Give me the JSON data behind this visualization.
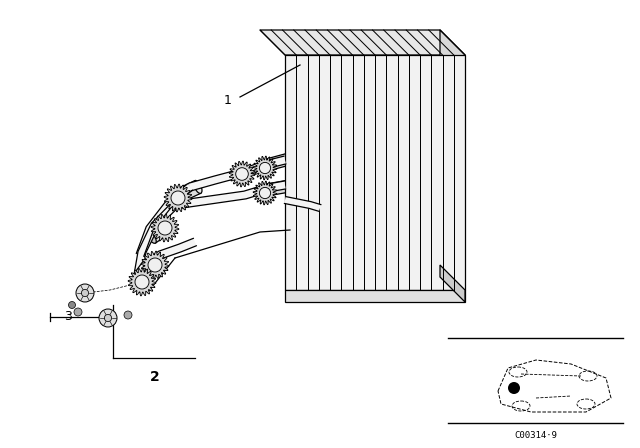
{
  "bg_color": "#ffffff",
  "line_color": "#000000",
  "label_1": "1",
  "label_2": "2",
  "label_3": "3",
  "code_text": "C00314·9",
  "fig_width": 6.4,
  "fig_height": 4.48,
  "dpi": 100
}
